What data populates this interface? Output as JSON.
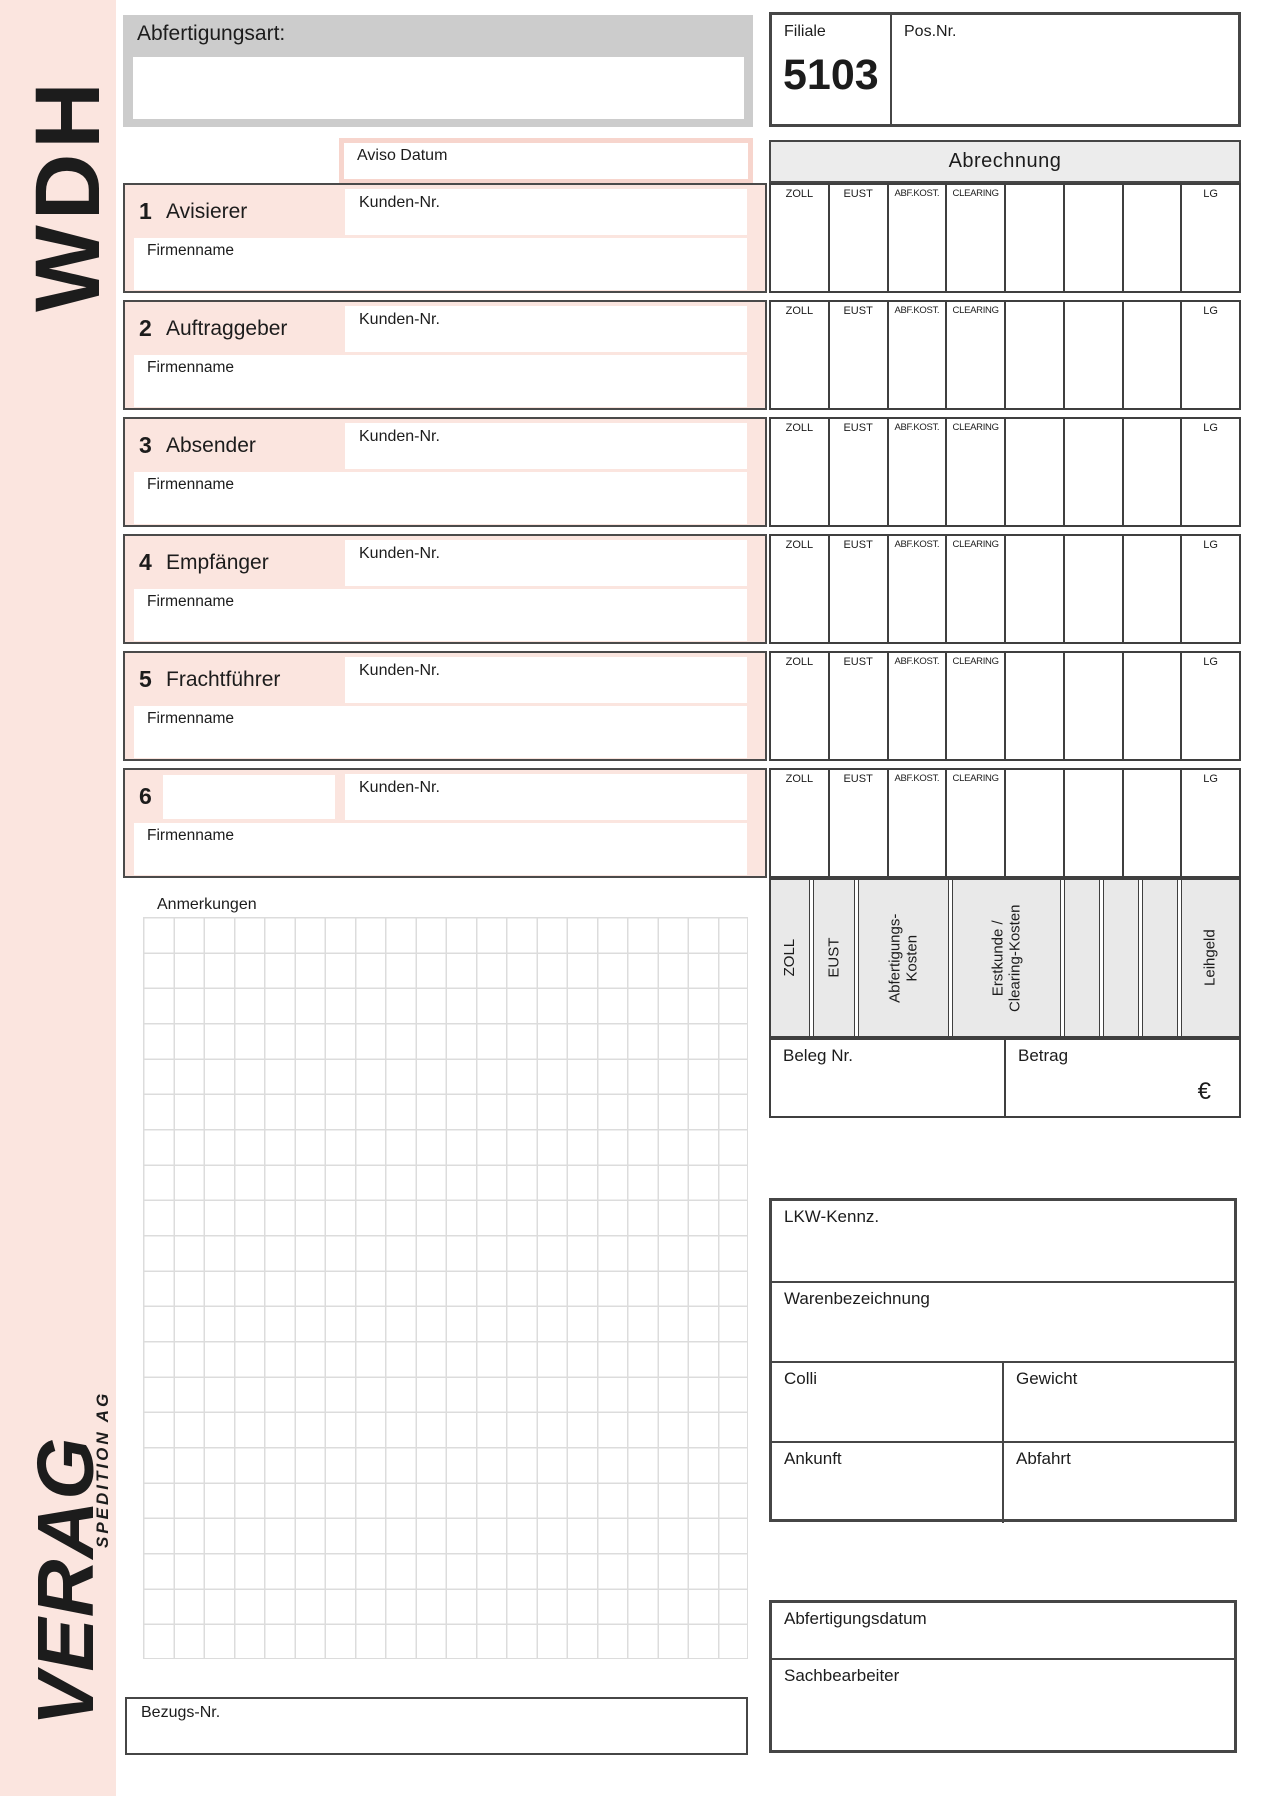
{
  "branding": {
    "wdh": "WDH",
    "verag": "VERAG",
    "spedition": "SPEDITION AG"
  },
  "header": {
    "abfertigungsart_label": "Abfertigungsart:",
    "filiale_label": "Filiale",
    "filiale_value": "5103",
    "pos_nr_label": "Pos.Nr.",
    "aviso_label": "Aviso Datum"
  },
  "field_labels": {
    "kunden": "Kunden-Nr.",
    "firma": "Firmenname"
  },
  "sections": [
    {
      "number": "1",
      "title": "Avisierer"
    },
    {
      "number": "2",
      "title": "Auftraggeber"
    },
    {
      "number": "3",
      "title": "Absender"
    },
    {
      "number": "4",
      "title": "Empfänger"
    },
    {
      "number": "5",
      "title": "Frachtführer"
    },
    {
      "number": "6",
      "title": ""
    }
  ],
  "abrechnung": {
    "title": "Abrechnung",
    "col_headers": [
      "ZOLL",
      "EUST",
      "ABF.KOST.",
      "CLEARING",
      "",
      "",
      "",
      "LG"
    ],
    "footer_labels": [
      "ZOLL",
      "EUST",
      "Abfertigungs-\nKosten",
      "Erstkunde /\nClearing-Kosten",
      "",
      "",
      "",
      "Leihgeld"
    ],
    "beleg_label": "Beleg Nr.",
    "betrag_label": "Betrag",
    "currency": "€"
  },
  "notes": {
    "anmerkungen_label": "Anmerkungen",
    "bezugs_label": "Bezugs-Nr."
  },
  "shipment": {
    "lkw_label": "LKW-Kennz.",
    "waren_label": "Warenbezeichnung",
    "colli_label": "Colli",
    "gewicht_label": "Gewicht",
    "ankunft_label": "Ankunft",
    "abfahrt_label": "Abfahrt",
    "abf_datum_label": "Abfertigungsdatum",
    "sachbearbeiter_label": "Sachbearbeiter"
  },
  "colors": {
    "pink": "#fbe5df",
    "pink_border": "#f7d5cd",
    "box_gray": "#cccccc",
    "header_gray": "#ececec",
    "footer_gray": "#e9e9e9",
    "border_dark": "#464646"
  }
}
